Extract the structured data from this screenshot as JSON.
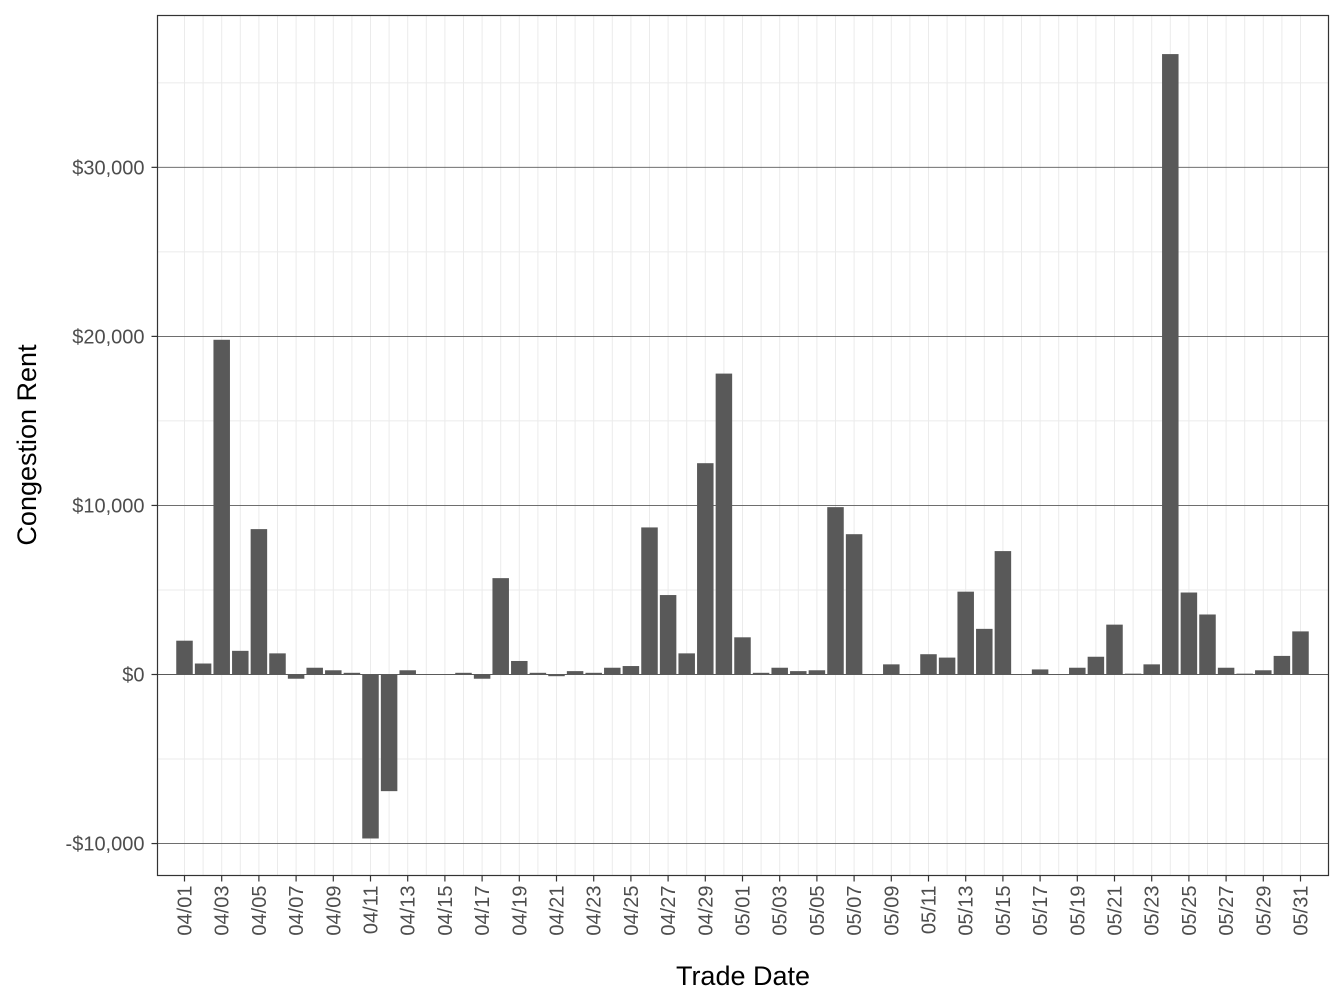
{
  "chart_data": {
    "type": "bar",
    "title": "",
    "xlabel": "Trade Date",
    "ylabel": "Congestion Rent",
    "ylim": [
      -12000,
      39000
    ],
    "y_ticks": [
      -10000,
      0,
      10000,
      20000,
      30000
    ],
    "y_tick_labels": [
      "-$10,000",
      "$0",
      "$10,000",
      "$20,000",
      "$30,000"
    ],
    "x_tick_labels": [
      "04/01",
      "04/03",
      "04/05",
      "04/07",
      "04/09",
      "04/11",
      "04/13",
      "04/15",
      "04/17",
      "04/19",
      "04/21",
      "04/23",
      "04/25",
      "04/27",
      "04/29",
      "05/01",
      "05/03",
      "05/05",
      "05/07",
      "05/09",
      "05/11",
      "05/13",
      "05/15",
      "05/17",
      "05/19",
      "05/21",
      "05/23",
      "05/25",
      "05/27",
      "05/29",
      "05/31"
    ],
    "grid": true,
    "legend": "none",
    "bar_color": "#595959",
    "categories": [
      "04/01",
      "04/02",
      "04/03",
      "04/04",
      "04/05",
      "04/06",
      "04/07",
      "04/08",
      "04/09",
      "04/10",
      "04/11",
      "04/12",
      "04/13",
      "04/14",
      "04/15",
      "04/16",
      "04/17",
      "04/18",
      "04/19",
      "04/20",
      "04/21",
      "04/22",
      "04/23",
      "04/24",
      "04/25",
      "04/26",
      "04/27",
      "04/28",
      "04/29",
      "04/30",
      "05/01",
      "05/02",
      "05/03",
      "05/04",
      "05/05",
      "05/06",
      "05/07",
      "05/08",
      "05/09",
      "05/10",
      "05/11",
      "05/12",
      "05/13",
      "05/14",
      "05/15",
      "05/16",
      "05/17",
      "05/18",
      "05/19",
      "05/20",
      "05/21",
      "05/22",
      "05/23",
      "05/24",
      "05/25",
      "05/26",
      "05/27",
      "05/28",
      "05/29",
      "05/30",
      "05/31"
    ],
    "values": [
      2000,
      650,
      19800,
      1400,
      8600,
      1250,
      -250,
      400,
      250,
      100,
      -9700,
      -6900,
      250,
      0,
      0,
      100,
      -250,
      5700,
      800,
      100,
      -100,
      200,
      100,
      400,
      500,
      8700,
      4700,
      1250,
      12500,
      17800,
      2200,
      100,
      400,
      200,
      250,
      9900,
      8300,
      0,
      600,
      0,
      1200,
      1000,
      4900,
      2700,
      7300,
      0,
      300,
      0,
      400,
      1050,
      2950,
      50,
      600,
      36700,
      4850,
      3550,
      400,
      50,
      250,
      1100,
      2550
    ]
  }
}
